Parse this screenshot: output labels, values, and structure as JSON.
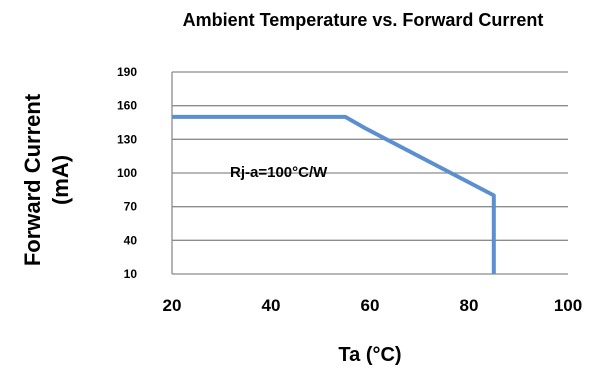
{
  "chart_data": {
    "type": "line",
    "title": "Ambient Temperature vs. Forward Current",
    "xlabel": "Ta (°C)",
    "ylabel_line1": "Forward Current",
    "ylabel_line2": "(mA)",
    "xlim": [
      20,
      100
    ],
    "ylim": [
      10,
      190
    ],
    "x_ticks": [
      20,
      40,
      60,
      80,
      100
    ],
    "y_ticks": [
      10,
      40,
      70,
      100,
      130,
      160,
      190
    ],
    "grid": "horizontal",
    "annotation": "Rj-a=100°C/W",
    "series": [
      {
        "color": "#5b8fd0",
        "points": [
          {
            "x": 20,
            "y": 150
          },
          {
            "x": 55,
            "y": 150
          },
          {
            "x": 59,
            "y": 140
          },
          {
            "x": 85,
            "y": 80
          },
          {
            "x": 85,
            "y": 10
          }
        ]
      }
    ]
  },
  "colors": {
    "line": "#5b8fd0",
    "grid": "#8c8c8c",
    "text": "#000000"
  }
}
